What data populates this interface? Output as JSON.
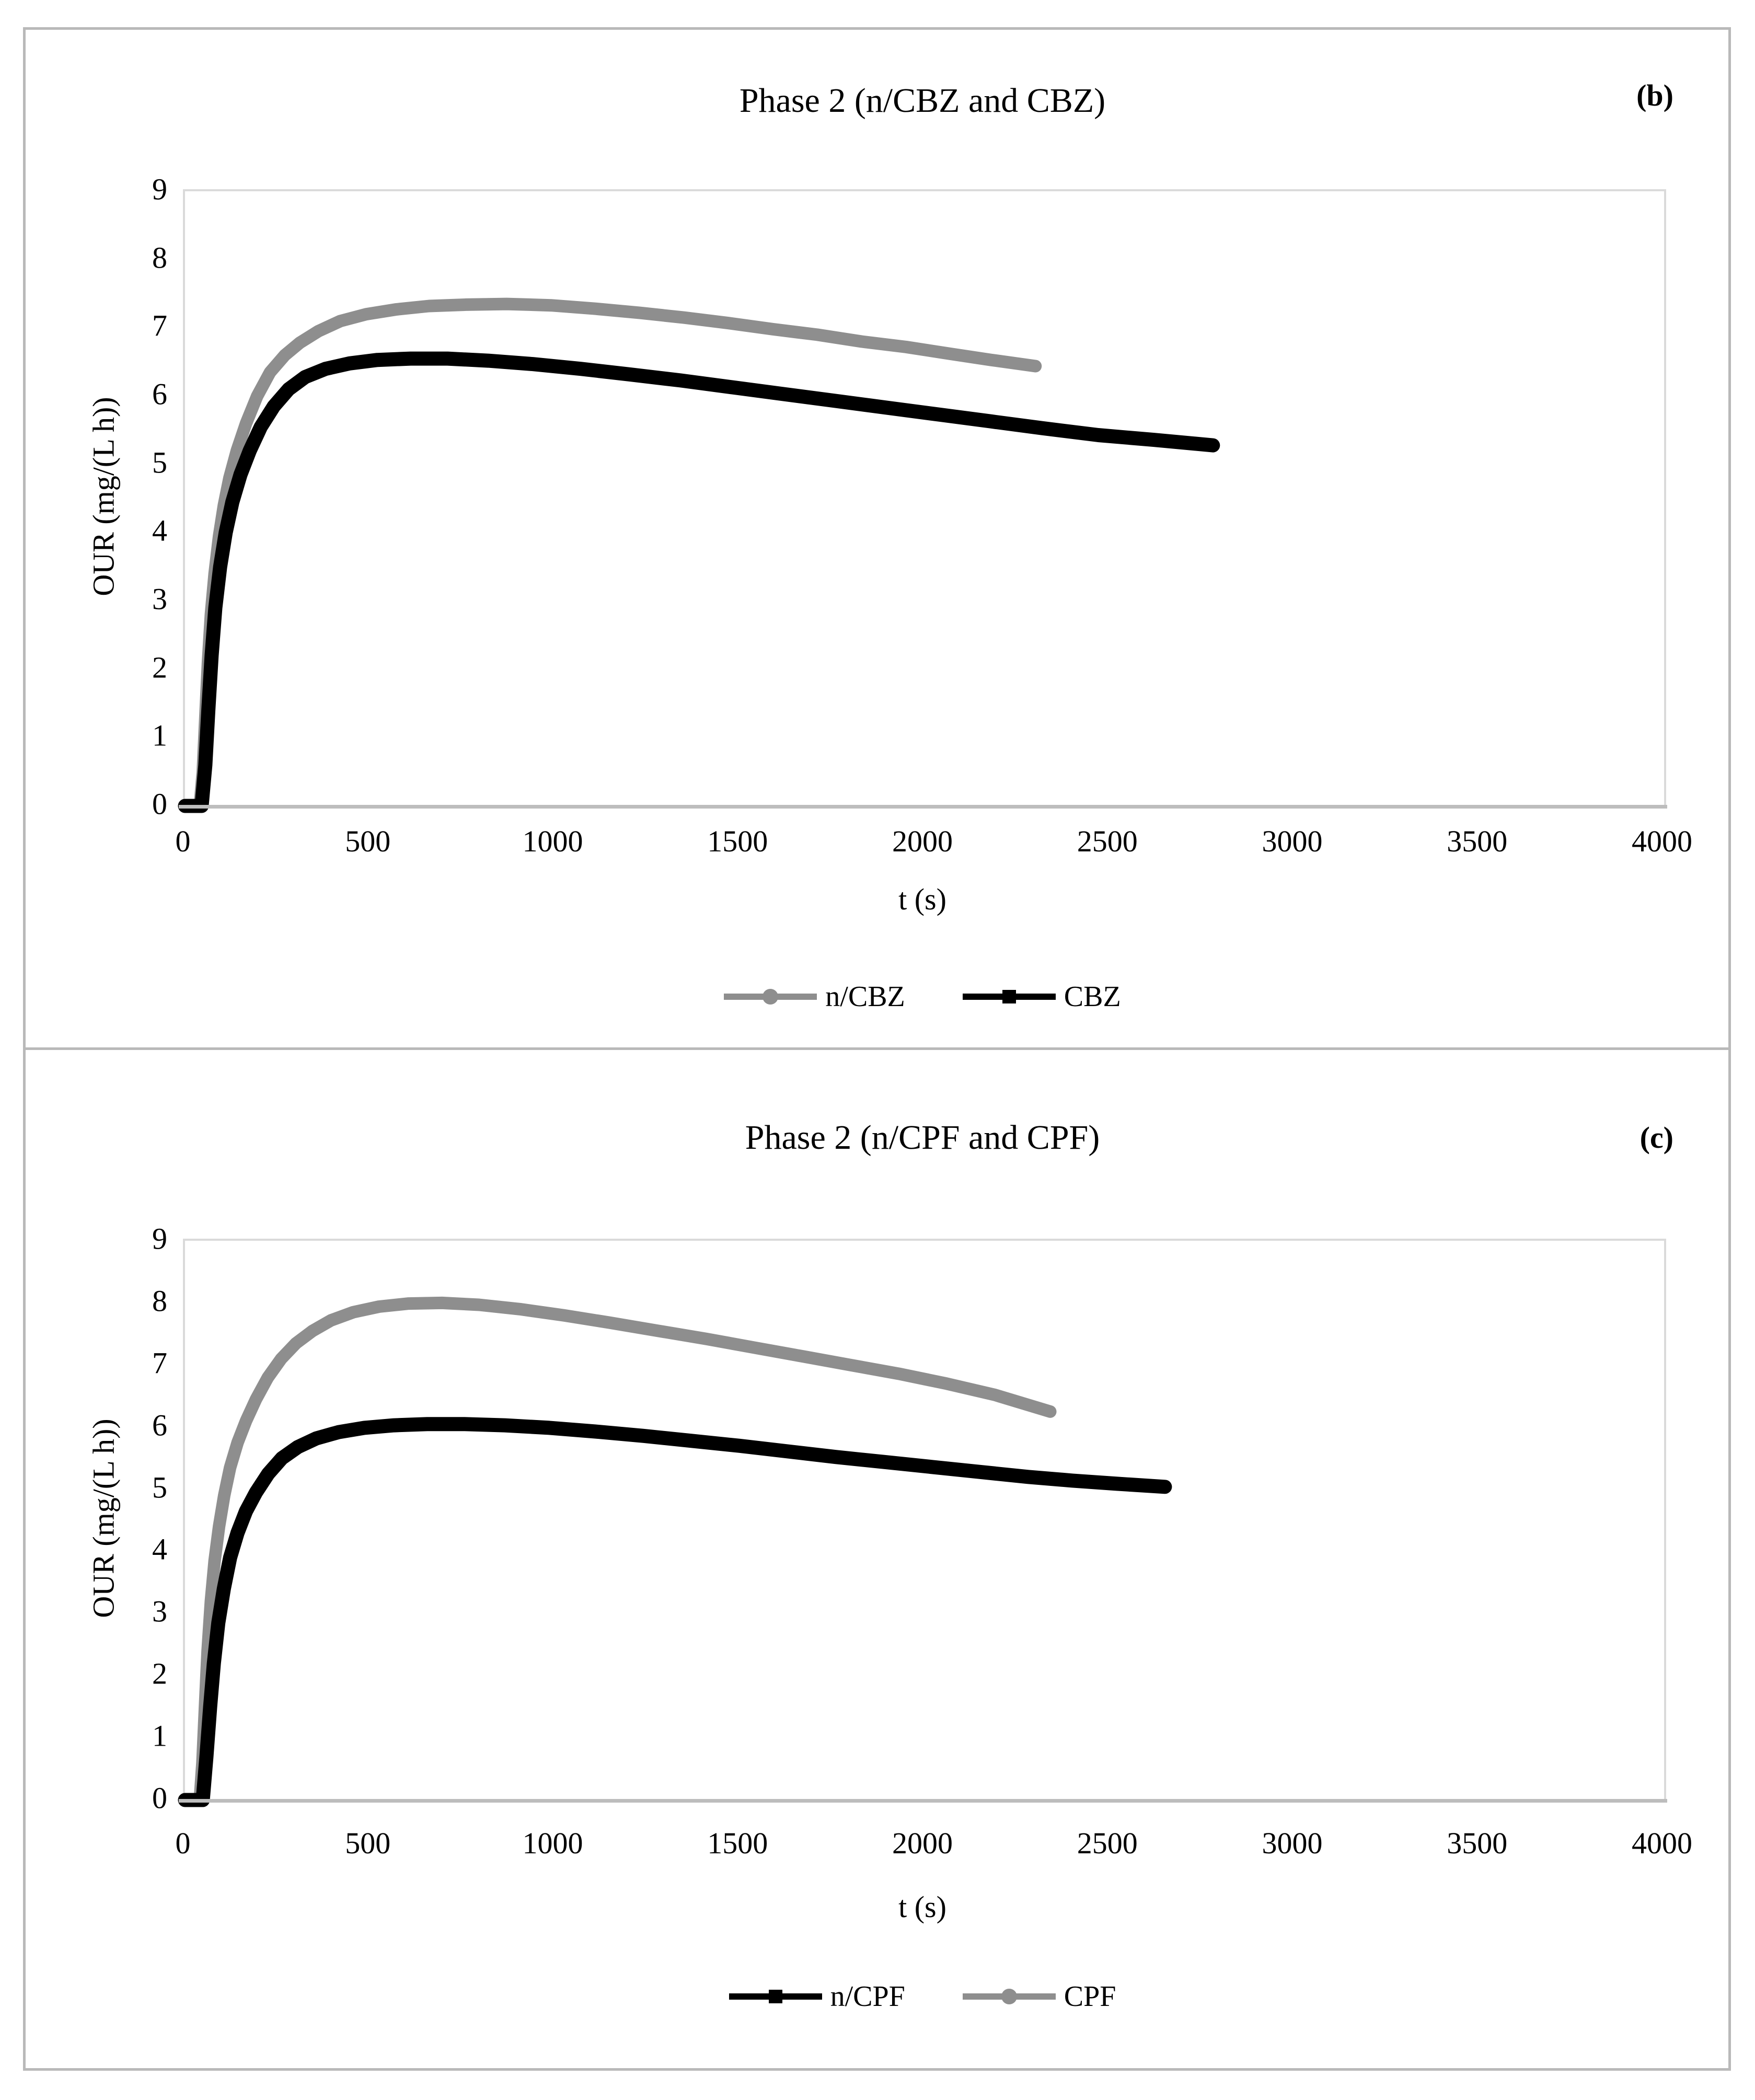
{
  "figure": {
    "background": "#ffffff",
    "frame_color": "#b9b9b9",
    "plot_border_color": "#dadada",
    "axis_line_color": "#bdbdbd",
    "series_gray": "#8e8e8e",
    "series_black": "#000000"
  },
  "chart_data": [
    {
      "type": "line",
      "panel_label": "(b)",
      "title": "Phase 2 (n/CBZ and CBZ)",
      "xlabel": "t (s)",
      "ylabel": "OUR (mg/(L h))",
      "xlim": [
        0,
        4000
      ],
      "ylim": [
        0,
        9
      ],
      "xticks": [
        0,
        500,
        1000,
        1500,
        2000,
        2500,
        3000,
        3500,
        4000
      ],
      "yticks": [
        0,
        1,
        2,
        3,
        4,
        5,
        6,
        7,
        8,
        9
      ],
      "grid": false,
      "legend_position": "bottom-center",
      "series": [
        {
          "name": "n/CBZ",
          "color": "#8e8e8e",
          "marker": "circle",
          "x": [
            0,
            40,
            48,
            55,
            62,
            70,
            80,
            92,
            105,
            120,
            140,
            165,
            195,
            230,
            270,
            310,
            360,
            420,
            490,
            570,
            660,
            760,
            870,
            990,
            1110,
            1230,
            1350,
            1470,
            1590,
            1710,
            1830,
            1950,
            2070,
            2180,
            2300
          ],
          "y": [
            0,
            0,
            0.5,
            1.3,
            2.1,
            2.8,
            3.4,
            3.95,
            4.4,
            4.8,
            5.2,
            5.6,
            6.0,
            6.35,
            6.6,
            6.78,
            6.95,
            7.1,
            7.2,
            7.27,
            7.32,
            7.34,
            7.35,
            7.33,
            7.28,
            7.22,
            7.15,
            7.07,
            6.98,
            6.9,
            6.8,
            6.72,
            6.62,
            6.53,
            6.44
          ]
        },
        {
          "name": "CBZ",
          "color": "#000000",
          "marker": "square",
          "x": [
            0,
            45,
            55,
            63,
            72,
            82,
            95,
            110,
            128,
            150,
            175,
            205,
            240,
            280,
            325,
            380,
            445,
            520,
            610,
            710,
            820,
            940,
            1070,
            1200,
            1340,
            1480,
            1620,
            1760,
            1900,
            2040,
            2180,
            2320,
            2470,
            2620,
            2780
          ],
          "y": [
            0,
            0,
            0.6,
            1.4,
            2.2,
            2.9,
            3.5,
            4.0,
            4.45,
            4.85,
            5.2,
            5.55,
            5.85,
            6.1,
            6.28,
            6.4,
            6.48,
            6.53,
            6.55,
            6.55,
            6.52,
            6.47,
            6.4,
            6.32,
            6.23,
            6.13,
            6.03,
            5.93,
            5.83,
            5.73,
            5.63,
            5.53,
            5.43,
            5.36,
            5.28
          ]
        }
      ]
    },
    {
      "type": "line",
      "panel_label": "(c)",
      "title": "Phase 2 (n/CPF and CPF)",
      "xlabel": "t (s)",
      "ylabel": "OUR (mg/(L h))",
      "xlim": [
        0,
        4000
      ],
      "ylim": [
        0,
        9
      ],
      "xticks": [
        0,
        500,
        1000,
        1500,
        2000,
        2500,
        3000,
        3500,
        4000
      ],
      "yticks": [
        0,
        1,
        2,
        3,
        4,
        5,
        6,
        7,
        8,
        9
      ],
      "grid": false,
      "legend_position": "bottom-center",
      "series": [
        {
          "name": "n/CPF",
          "color": "#000000",
          "marker": "square",
          "x": [
            0,
            48,
            58,
            68,
            78,
            90,
            105,
            122,
            142,
            165,
            192,
            225,
            262,
            305,
            355,
            415,
            485,
            565,
            655,
            755,
            865,
            985,
            1110,
            1240,
            1370,
            1500,
            1630,
            1760,
            1890,
            2020,
            2150,
            2280,
            2400,
            2520,
            2650
          ],
          "y": [
            0,
            0,
            0.7,
            1.5,
            2.2,
            2.85,
            3.4,
            3.9,
            4.3,
            4.65,
            4.95,
            5.25,
            5.5,
            5.68,
            5.82,
            5.92,
            5.99,
            6.03,
            6.05,
            6.05,
            6.03,
            5.99,
            5.93,
            5.86,
            5.78,
            5.7,
            5.61,
            5.52,
            5.44,
            5.36,
            5.28,
            5.2,
            5.14,
            5.09,
            5.04
          ]
        },
        {
          "name": "CPF",
          "color": "#8e8e8e",
          "marker": "circle",
          "x": [
            0,
            40,
            47,
            54,
            61,
            70,
            80,
            92,
            106,
            122,
            142,
            165,
            192,
            224,
            260,
            300,
            345,
            395,
            455,
            525,
            605,
            695,
            795,
            905,
            1025,
            1150,
            1280,
            1410,
            1540,
            1670,
            1800,
            1930,
            2060,
            2190,
            2340
          ],
          "y": [
            0,
            0,
            0.6,
            1.5,
            2.4,
            3.2,
            3.85,
            4.4,
            4.9,
            5.35,
            5.75,
            6.1,
            6.45,
            6.8,
            7.1,
            7.35,
            7.55,
            7.72,
            7.85,
            7.94,
            7.99,
            8.0,
            7.97,
            7.9,
            7.8,
            7.68,
            7.55,
            7.42,
            7.28,
            7.14,
            7.0,
            6.86,
            6.7,
            6.52,
            6.25
          ]
        }
      ]
    }
  ]
}
